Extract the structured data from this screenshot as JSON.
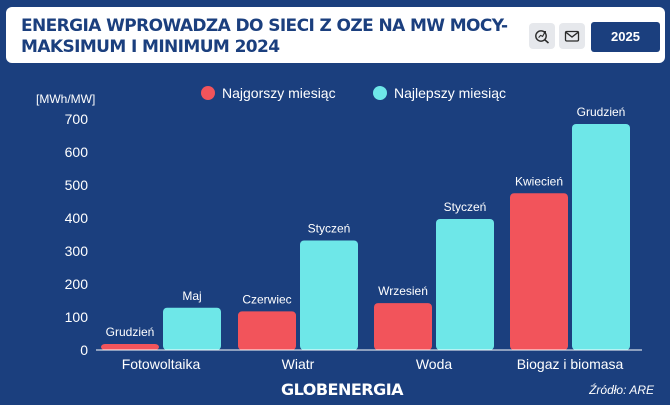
{
  "header": {
    "title_line1": "ENERGIA WPROWADZA DO SIECI Z OZE NA MW MOCY-",
    "title_line2": "MAKSIMUM I MINIMUM 2024",
    "year_button": "2025",
    "icons": [
      "search-chart-icon",
      "mail-icon"
    ]
  },
  "chart_data": {
    "type": "bar",
    "ylabel": "[MWh/MW]",
    "ylim": [
      0,
      700
    ],
    "yticks": [
      0,
      100,
      200,
      300,
      400,
      500,
      600,
      700
    ],
    "categories": [
      "Fotowoltaika",
      "Wiatr",
      "Woda",
      "Biogaz i biomasa"
    ],
    "series": [
      {
        "name": "Najgorszy miesiąc",
        "color": "#f2545b",
        "values": [
          18,
          117,
          142,
          475
        ],
        "labels": [
          "Grudzień",
          "Czerwiec",
          "Wrzesień",
          "Kwiecień"
        ]
      },
      {
        "name": "Najlepszy miesiąc",
        "color": "#6ee7e8",
        "values": [
          128,
          332,
          397,
          685
        ],
        "labels": [
          "Maj",
          "Styczeń",
          "Styczeń",
          "Grudzień"
        ]
      }
    ],
    "legend_position": "top-center",
    "grid": false
  },
  "footer": {
    "brand": "GLOBENERGIA",
    "source": "Źródło: ARE"
  }
}
